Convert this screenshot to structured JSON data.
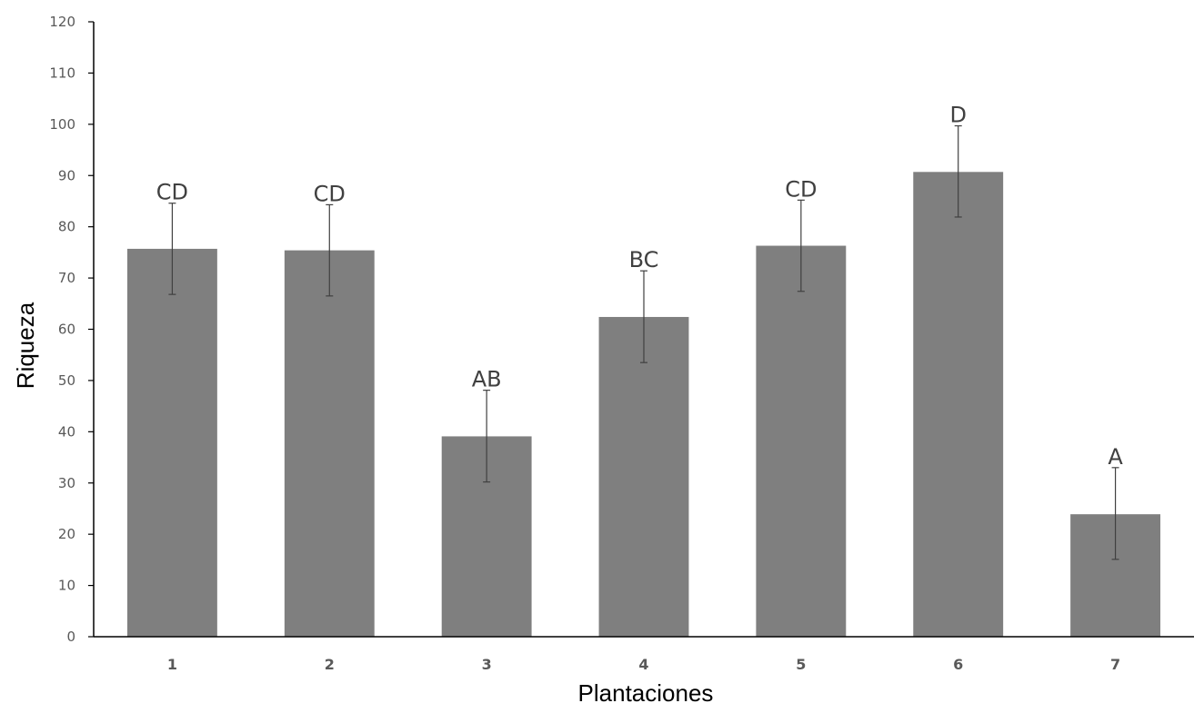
{
  "chart_data": {
    "type": "bar",
    "xlabel": "Plantaciones",
    "ylabel": "Riqueza",
    "ylim": [
      0,
      120
    ],
    "yticks": [
      0,
      10,
      20,
      30,
      40,
      50,
      60,
      70,
      80,
      90,
      100,
      110,
      120
    ],
    "categories": [
      "1",
      "2",
      "3",
      "4",
      "5",
      "6",
      "7"
    ],
    "values": [
      75.7,
      75.4,
      39.1,
      62.4,
      76.3,
      90.7,
      23.9
    ],
    "error_plus": [
      8.9,
      8.9,
      9.0,
      9.0,
      8.9,
      9.0,
      9.1
    ],
    "error_minus": [
      8.9,
      8.9,
      8.9,
      8.9,
      8.9,
      8.8,
      8.8
    ],
    "significance_labels": [
      "CD",
      "CD",
      "AB",
      "BC",
      "CD",
      "D",
      "A"
    ],
    "grid": false,
    "legend": "none",
    "bar_color": "#7f7f7f",
    "axis_color": "#000000",
    "error_bar_color": "#404040"
  }
}
